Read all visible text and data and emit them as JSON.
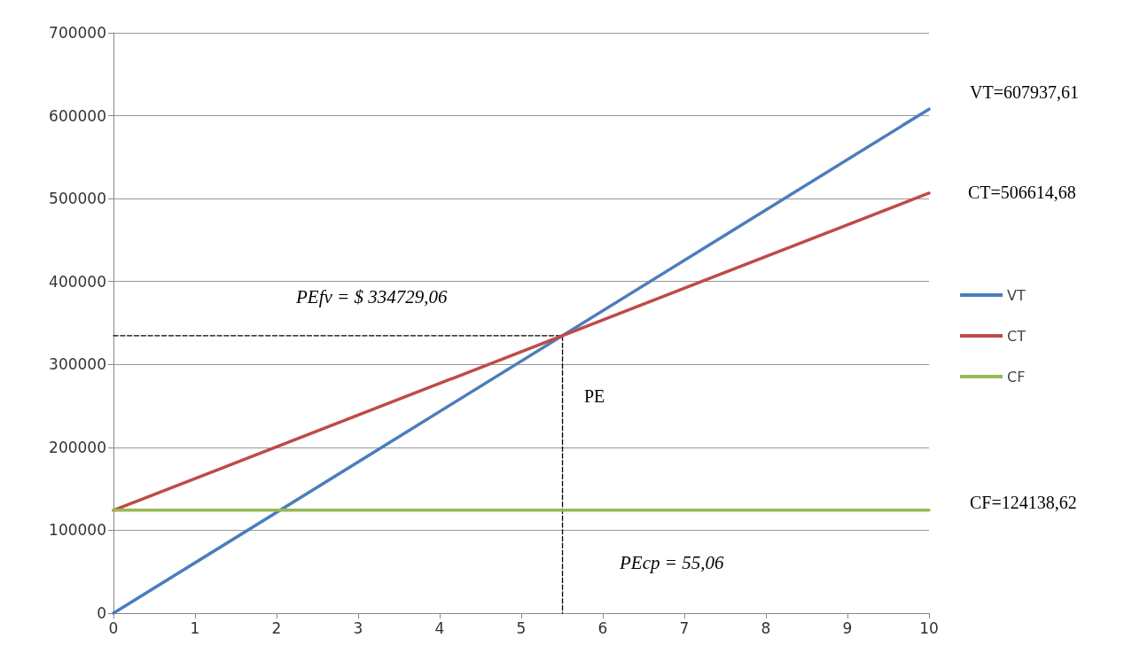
{
  "chart_data": {
    "type": "line",
    "xlim": [
      0,
      10
    ],
    "xticks": [
      0,
      1,
      2,
      3,
      4,
      5,
      6,
      7,
      8,
      9,
      10
    ],
    "ylim": [
      0,
      700000
    ],
    "yticks": [
      0,
      100000,
      200000,
      300000,
      400000,
      500000,
      600000,
      700000
    ],
    "grid": "y",
    "legend": "right",
    "marker": "none",
    "series": [
      {
        "name": "VT",
        "color": "#4a7ebb",
        "x": [
          0,
          10
        ],
        "values": [
          0,
          607937.61
        ]
      },
      {
        "name": "CT",
        "color": "#be4b48",
        "x": [
          0,
          10
        ],
        "values": [
          124138.62,
          506614.68
        ]
      },
      {
        "name": "CF",
        "color": "#98b954",
        "x": [
          0,
          10
        ],
        "values": [
          124138.62,
          124138.62
        ]
      },
      {
        "color": "#000000",
        "line_style": "dashed",
        "x": [
          0,
          5.506,
          5.506
        ],
        "values": [
          334729.06,
          334729.06,
          0
        ]
      }
    ],
    "annotations": [
      "VT=607937,61",
      "CT=506614,68",
      "CF=124138,62",
      "PE",
      "PEfv = $ 334729,06",
      "PEcp = 55,06"
    ]
  }
}
